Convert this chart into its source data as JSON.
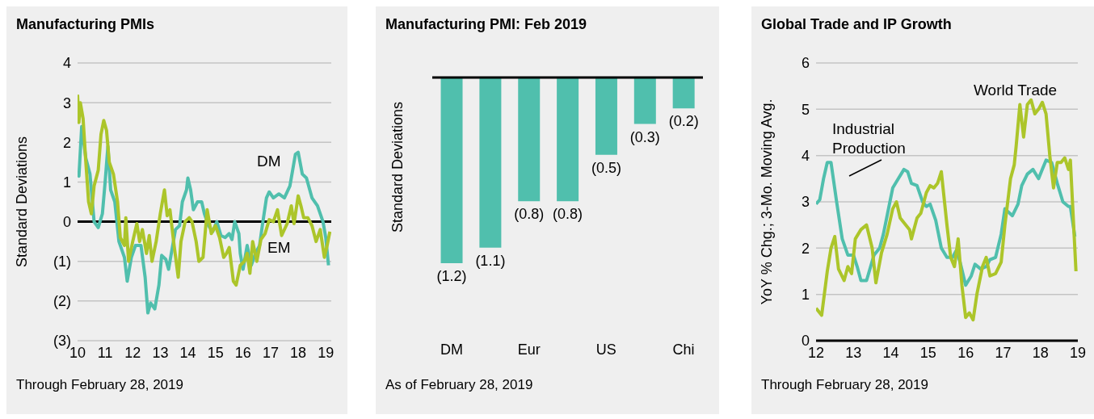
{
  "chart_data": [
    {
      "type": "line",
      "title": "Manufacturing PMIs",
      "ylabel": "Standard Deviations",
      "xlim": [
        2010,
        2019.2
      ],
      "xticks": [
        {
          "value": 2010,
          "label": "10"
        },
        {
          "value": 2011,
          "label": "11"
        },
        {
          "value": 2012,
          "label": "12"
        },
        {
          "value": 2013,
          "label": "13"
        },
        {
          "value": 2014,
          "label": "14"
        },
        {
          "value": 2015,
          "label": "15"
        },
        {
          "value": 2016,
          "label": "16"
        },
        {
          "value": 2017,
          "label": "17"
        },
        {
          "value": 2018,
          "label": "18"
        },
        {
          "value": 2019,
          "label": "19"
        }
      ],
      "ylim": [
        -3,
        4
      ],
      "yticks": [
        {
          "value": -3,
          "label": "(3)"
        },
        {
          "value": -2,
          "label": "(2)"
        },
        {
          "value": -1,
          "label": "(1)"
        },
        0,
        1,
        2,
        3,
        4
      ],
      "grid": "y",
      "marker": "none",
      "ref_lines": [
        {
          "axis": "y",
          "value": 0,
          "color": "#000000"
        }
      ],
      "annotations": [
        "Through February 28, 2019"
      ],
      "series": [
        {
          "name": "DM",
          "color": "#50bfad",
          "x": [
            2010.0,
            2010.05,
            2010.15,
            2010.3,
            2010.45,
            2010.6,
            2010.75,
            2010.9,
            2011.0,
            2011.1,
            2011.2,
            2011.35,
            2011.5,
            2011.7,
            2011.8,
            2011.95,
            2012.1,
            2012.3,
            2012.45,
            2012.55,
            2012.65,
            2012.8,
            2012.95,
            2013.05,
            2013.2,
            2013.3,
            2013.45,
            2013.55,
            2013.7,
            2013.8,
            2013.95,
            2014.0,
            2014.1,
            2014.2,
            2014.35,
            2014.5,
            2014.6,
            2014.75,
            2014.9,
            2015.05,
            2015.2,
            2015.35,
            2015.5,
            2015.6,
            2015.7,
            2015.85,
            2015.9,
            2016.0,
            2016.15,
            2016.3,
            2016.45,
            2016.6,
            2016.7,
            2016.85,
            2016.95,
            2017.1,
            2017.3,
            2017.5,
            2017.7,
            2017.9,
            2018.0,
            2018.15,
            2018.3,
            2018.5,
            2018.7,
            2018.9,
            2019.0,
            2019.1
          ],
          "values": [
            1.2,
            1.15,
            2.4,
            1.6,
            1.2,
            0.0,
            -0.15,
            0.2,
            1.0,
            1.9,
            0.8,
            0.5,
            -0.5,
            -0.9,
            -1.5,
            -0.9,
            -0.6,
            -0.6,
            -1.4,
            -2.3,
            -2.05,
            -2.2,
            -1.6,
            -0.85,
            -0.95,
            -1.2,
            -0.6,
            -0.2,
            -0.1,
            0.5,
            0.8,
            1.1,
            0.8,
            0.3,
            0.5,
            0.5,
            0.2,
            -0.1,
            -0.25,
            0.0,
            -0.35,
            -0.4,
            -0.3,
            -0.45,
            0.0,
            -0.3,
            -0.8,
            -1.2,
            -0.6,
            -1.1,
            -0.8,
            -0.6,
            -0.1,
            0.6,
            0.75,
            0.6,
            0.7,
            0.6,
            0.9,
            1.7,
            1.75,
            1.2,
            1.1,
            0.6,
            0.4,
            0.0,
            -0.4,
            -1.1
          ]
        },
        {
          "name": "EM",
          "color": "#acc52a",
          "x": [
            2010.0,
            2010.05,
            2010.1,
            2010.2,
            2010.3,
            2010.4,
            2010.5,
            2010.6,
            2010.75,
            2010.85,
            2010.95,
            2011.05,
            2011.15,
            2011.3,
            2011.45,
            2011.55,
            2011.7,
            2011.75,
            2011.85,
            2012.0,
            2012.15,
            2012.25,
            2012.35,
            2012.5,
            2012.6,
            2012.7,
            2012.85,
            2013.0,
            2013.15,
            2013.25,
            2013.35,
            2013.5,
            2013.65,
            2013.75,
            2013.9,
            2014.05,
            2014.15,
            2014.3,
            2014.4,
            2014.55,
            2014.7,
            2014.85,
            2015.0,
            2015.15,
            2015.3,
            2015.4,
            2015.5,
            2015.65,
            2015.75,
            2015.9,
            2016.05,
            2016.15,
            2016.25,
            2016.35,
            2016.5,
            2016.65,
            2016.8,
            2016.95,
            2017.1,
            2017.25,
            2017.4,
            2017.6,
            2017.75,
            2017.85,
            2018.0,
            2018.1,
            2018.2,
            2018.35,
            2018.5,
            2018.65,
            2018.8,
            2018.95,
            2019.05,
            2019.15
          ],
          "values": [
            3.2,
            2.5,
            3.0,
            2.6,
            1.5,
            0.5,
            0.2,
            0.9,
            1.3,
            2.2,
            2.55,
            2.3,
            1.5,
            1.2,
            0.5,
            -0.4,
            -0.6,
            0.1,
            -1.0,
            -0.5,
            -0.05,
            -0.5,
            -0.2,
            -0.8,
            -0.35,
            -1.0,
            -0.5,
            0.2,
            0.8,
            0.15,
            0.3,
            -0.6,
            -1.4,
            -0.5,
            0.0,
            0.1,
            0.0,
            -0.5,
            -1.0,
            -0.9,
            0.3,
            -0.3,
            -0.1,
            -0.4,
            -0.9,
            -0.8,
            -0.65,
            -1.5,
            -1.6,
            -1.1,
            -1.0,
            -0.8,
            -1.3,
            -0.5,
            -1.0,
            -0.45,
            -0.3,
            0.05,
            0.0,
            0.3,
            -0.35,
            -0.05,
            0.4,
            -0.05,
            0.65,
            0.4,
            0.1,
            0.1,
            -0.1,
            -0.5,
            -0.2,
            -0.9,
            -0.6,
            -0.25
          ]
        }
      ]
    },
    {
      "type": "bar",
      "title": "Manufacturing PMI: Feb 2019",
      "ylabel": "Standard Deviations",
      "categories": [
        "DM",
        null,
        "Eur",
        null,
        "US",
        null,
        "Chi"
      ],
      "values": [
        -1.2,
        -1.1,
        -0.8,
        -0.8,
        -0.5,
        -0.3,
        -0.2
      ],
      "value_labels": [
        "(1.2)",
        "(1.1)",
        "(0.8)",
        "(0.8)",
        "(0.5)",
        "(0.3)",
        "(0.2)"
      ],
      "color": "#50bfad",
      "ref_lines": [
        {
          "axis": "y",
          "value": 0,
          "color": "#000000"
        }
      ],
      "annotations": [
        "As of February 28, 2019"
      ]
    },
    {
      "type": "line",
      "title": "Global Trade and IP Growth",
      "ylabel": "YoY % Chg.; 3-Mo. Moving Avg.",
      "xlim": [
        2012,
        2019
      ],
      "xticks": [
        {
          "value": 2012,
          "label": "12"
        },
        {
          "value": 2013,
          "label": "13"
        },
        {
          "value": 2014,
          "label": "14"
        },
        {
          "value": 2015,
          "label": "15"
        },
        {
          "value": 2016,
          "label": "16"
        },
        {
          "value": 2017,
          "label": "17"
        },
        {
          "value": 2018,
          "label": "18"
        },
        {
          "value": 2019,
          "label": "19"
        }
      ],
      "ylim": [
        0,
        6
      ],
      "yticks": [
        0,
        1,
        2,
        3,
        4,
        5,
        6
      ],
      "grid": "y",
      "marker": "none",
      "annotations": [
        "Through February 28, 2019"
      ],
      "series": [
        {
          "name": "Industrial Production",
          "color": "#50bfad",
          "x": [
            2012.0,
            2012.1,
            2012.2,
            2012.3,
            2012.4,
            2012.55,
            2012.7,
            2012.85,
            2013.0,
            2013.1,
            2013.2,
            2013.35,
            2013.55,
            2013.7,
            2013.8,
            2013.95,
            2014.05,
            2014.2,
            2014.35,
            2014.45,
            2014.55,
            2014.7,
            2014.85,
            2014.95,
            2015.05,
            2015.2,
            2015.35,
            2015.5,
            2015.65,
            2015.75,
            2015.85,
            2016.0,
            2016.15,
            2016.25,
            2016.4,
            2016.55,
            2016.65,
            2016.8,
            2016.95,
            2017.05,
            2017.25,
            2017.4,
            2017.5,
            2017.65,
            2017.8,
            2017.95,
            2018.05,
            2018.15,
            2018.3,
            2018.45,
            2018.6,
            2018.75,
            2018.8,
            2018.92
          ],
          "values": [
            2.95,
            3.05,
            3.5,
            3.85,
            3.85,
            3.0,
            2.2,
            1.85,
            1.85,
            1.6,
            1.3,
            1.3,
            1.85,
            2.0,
            2.3,
            2.9,
            3.3,
            3.5,
            3.7,
            3.65,
            3.4,
            3.35,
            3.0,
            2.9,
            2.95,
            2.6,
            2.0,
            1.8,
            1.8,
            1.95,
            1.7,
            1.2,
            1.4,
            1.65,
            1.55,
            1.6,
            1.75,
            1.8,
            2.3,
            2.85,
            2.7,
            2.95,
            3.35,
            3.6,
            3.7,
            3.5,
            3.7,
            3.9,
            3.85,
            3.4,
            3.0,
            2.9,
            2.9,
            2.25
          ]
        },
        {
          "name": "World Trade",
          "color": "#acc52a",
          "x": [
            2012.0,
            2012.15,
            2012.3,
            2012.4,
            2012.5,
            2012.6,
            2012.75,
            2012.85,
            2012.95,
            2013.05,
            2013.2,
            2013.35,
            2013.5,
            2013.6,
            2013.75,
            2013.9,
            2014.05,
            2014.15,
            2014.25,
            2014.4,
            2014.5,
            2014.55,
            2014.7,
            2014.8,
            2014.95,
            2015.05,
            2015.15,
            2015.25,
            2015.35,
            2015.5,
            2015.6,
            2015.7,
            2015.8,
            2015.9,
            2016.0,
            2016.1,
            2016.2,
            2016.3,
            2016.45,
            2016.55,
            2016.65,
            2016.8,
            2016.95,
            2017.05,
            2017.2,
            2017.3,
            2017.35,
            2017.45,
            2017.55,
            2017.65,
            2017.75,
            2017.85,
            2017.95,
            2018.05,
            2018.15,
            2018.25,
            2018.35,
            2018.45,
            2018.55,
            2018.65,
            2018.75,
            2018.8,
            2018.95
          ],
          "values": [
            0.7,
            0.55,
            1.5,
            2.0,
            2.25,
            1.55,
            1.3,
            1.6,
            1.45,
            2.2,
            2.4,
            2.5,
            2.0,
            1.25,
            1.9,
            2.3,
            2.85,
            3.0,
            2.65,
            2.5,
            2.4,
            2.2,
            2.65,
            2.75,
            3.2,
            3.35,
            3.3,
            3.4,
            3.65,
            2.5,
            1.8,
            1.6,
            2.2,
            1.2,
            0.5,
            0.6,
            0.45,
            1.0,
            1.6,
            1.8,
            1.4,
            1.45,
            1.7,
            2.5,
            3.5,
            3.8,
            4.2,
            5.1,
            4.4,
            5.1,
            5.2,
            4.9,
            5.0,
            5.15,
            4.9,
            4.0,
            3.3,
            3.85,
            3.85,
            3.95,
            3.7,
            3.9,
            1.5
          ]
        }
      ]
    }
  ]
}
